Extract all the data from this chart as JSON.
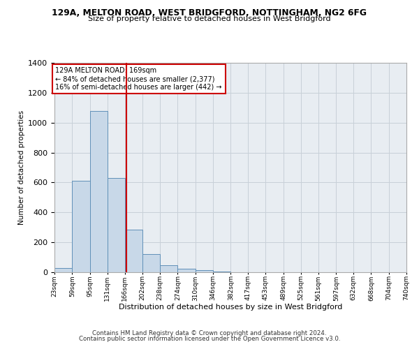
{
  "title_line1": "129A, MELTON ROAD, WEST BRIDGFORD, NOTTINGHAM, NG2 6FG",
  "title_line2": "Size of property relative to detached houses in West Bridgford",
  "xlabel": "Distribution of detached houses by size in West Bridgford",
  "ylabel": "Number of detached properties",
  "footer_line1": "Contains HM Land Registry data © Crown copyright and database right 2024.",
  "footer_line2": "Contains public sector information licensed under the Open Government Licence v3.0.",
  "property_label": "129A MELTON ROAD: 169sqm",
  "annotation_line1": "← 84% of detached houses are smaller (2,377)",
  "annotation_line2": "16% of semi-detached houses are larger (442) →",
  "bar_left_edges": [
    23,
    59,
    95,
    131,
    166,
    202,
    238,
    274,
    310,
    346,
    382,
    417,
    453,
    489,
    525,
    561,
    597,
    632,
    668,
    704
  ],
  "bar_widths": [
    36,
    36,
    36,
    36,
    36,
    36,
    36,
    36,
    36,
    36,
    36,
    36,
    36,
    36,
    36,
    36,
    36,
    36,
    36,
    36
  ],
  "bar_heights": [
    30,
    610,
    1080,
    630,
    285,
    120,
    45,
    25,
    15,
    5,
    0,
    0,
    0,
    0,
    0,
    0,
    0,
    0,
    0,
    0
  ],
  "tick_labels": [
    "23sqm",
    "59sqm",
    "95sqm",
    "131sqm",
    "166sqm",
    "202sqm",
    "238sqm",
    "274sqm",
    "310sqm",
    "346sqm",
    "382sqm",
    "417sqm",
    "453sqm",
    "489sqm",
    "525sqm",
    "561sqm",
    "597sqm",
    "632sqm",
    "668sqm",
    "704sqm",
    "740sqm"
  ],
  "bar_color": "#c8d8e8",
  "bar_edge_color": "#6090b8",
  "vline_color": "#cc0000",
  "vline_x": 169,
  "annotation_box_edge": "#cc0000",
  "grid_color": "#c8d0d8",
  "bg_color": "#e8edf2",
  "ylim": [
    0,
    1400
  ],
  "yticks": [
    0,
    200,
    400,
    600,
    800,
    1000,
    1200,
    1400
  ],
  "xlim_min": 23,
  "xlim_max": 740
}
